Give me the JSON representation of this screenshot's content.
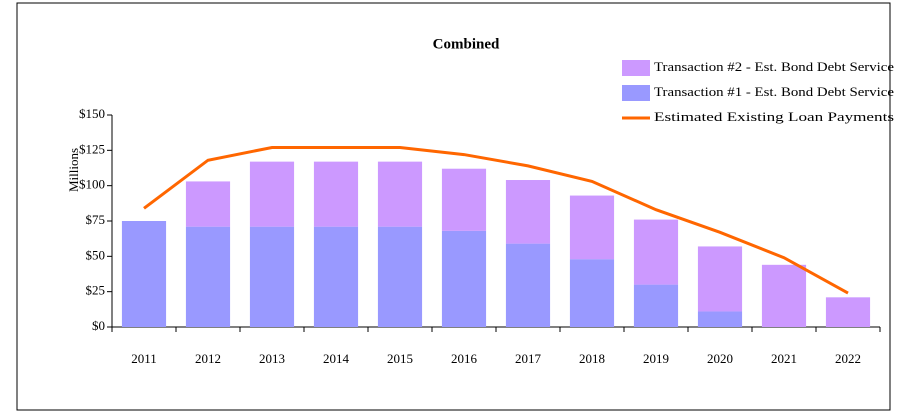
{
  "chart_data": {
    "type": "bar",
    "title": "Combined",
    "ylabel": "Millions",
    "categories": [
      "2011",
      "2012",
      "2013",
      "2014",
      "2015",
      "2016",
      "2017",
      "2018",
      "2019",
      "2020",
      "2021",
      "2022"
    ],
    "series": [
      {
        "name": "Transaction #1 - Est. Bond Debt Service",
        "type": "bar",
        "color": "#9999ff",
        "values": [
          75,
          71,
          71,
          71,
          71,
          68,
          59,
          48,
          30,
          11,
          0,
          0
        ]
      },
      {
        "name": "Transaction #2 - Est. Bond Debt Service",
        "type": "bar",
        "color": "#cc99ff",
        "values": [
          0,
          32,
          46,
          46,
          46,
          44,
          45,
          45,
          46,
          46,
          44,
          21
        ]
      },
      {
        "name": "Estimated Existing Loan Payments",
        "type": "line",
        "color": "#ff6600",
        "values": [
          84,
          118,
          127,
          127,
          127,
          122,
          114,
          103,
          83,
          67,
          49,
          24
        ]
      }
    ],
    "stacked": true,
    "ylim": [
      0,
      150
    ],
    "yticks": [
      {
        "value": 0,
        "label": "$0"
      },
      {
        "value": 25,
        "label": "$25"
      },
      {
        "value": 50,
        "label": "$50"
      },
      {
        "value": 75,
        "label": "$75"
      },
      {
        "value": 100,
        "label": "$100"
      },
      {
        "value": 125,
        "label": "$125"
      },
      {
        "value": 150,
        "label": "$150"
      }
    ],
    "legend": "top-right"
  }
}
